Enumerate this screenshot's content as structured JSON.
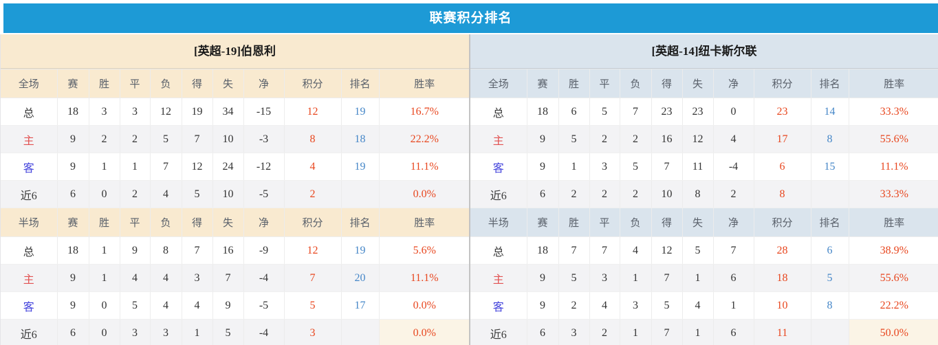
{
  "banner": {
    "title": "联赛积分排名"
  },
  "colors": {
    "banner_bg": "#1d9ad6",
    "cream": "#f9ead0",
    "light_blue": "#dae4ed",
    "alt_row": "#f3f3f5",
    "value_red": "#e8461e",
    "rank_blue": "#4687c8",
    "home_red": "#e25151",
    "away_blue": "#4343dc",
    "text": "#333333",
    "header_text": "#59606a",
    "highlight_cream": "#fbf4e6"
  },
  "tables": [
    {
      "title": "[英超-19]伯恩利",
      "sections": [
        {
          "header": [
            "全场",
            "赛",
            "胜",
            "平",
            "负",
            "得",
            "失",
            "净",
            "积分",
            "排名",
            "胜率"
          ],
          "rows": [
            {
              "label": "总",
              "label_type": "total",
              "values": [
                "18",
                "3",
                "3",
                "12",
                "19",
                "34",
                "-15"
              ],
              "points": "12",
              "rank": "19",
              "rate": "16.7%"
            },
            {
              "label": "主",
              "label_type": "home",
              "values": [
                "9",
                "2",
                "2",
                "5",
                "7",
                "10",
                "-3"
              ],
              "points": "8",
              "rank": "18",
              "rate": "22.2%"
            },
            {
              "label": "客",
              "label_type": "away",
              "values": [
                "9",
                "1",
                "1",
                "7",
                "12",
                "24",
                "-12"
              ],
              "points": "4",
              "rank": "19",
              "rate": "11.1%"
            },
            {
              "label": "近6",
              "label_type": "recent",
              "values": [
                "6",
                "0",
                "2",
                "4",
                "5",
                "10",
                "-5"
              ],
              "points": "2",
              "rank": "",
              "rate": "0.0%"
            }
          ]
        },
        {
          "header": [
            "半场",
            "赛",
            "胜",
            "平",
            "负",
            "得",
            "失",
            "净",
            "积分",
            "排名",
            "胜率"
          ],
          "rows": [
            {
              "label": "总",
              "label_type": "total",
              "values": [
                "18",
                "1",
                "9",
                "8",
                "7",
                "16",
                "-9"
              ],
              "points": "12",
              "rank": "19",
              "rate": "5.6%"
            },
            {
              "label": "主",
              "label_type": "home",
              "values": [
                "9",
                "1",
                "4",
                "4",
                "3",
                "7",
                "-4"
              ],
              "points": "7",
              "rank": "20",
              "rate": "11.1%"
            },
            {
              "label": "客",
              "label_type": "away",
              "values": [
                "9",
                "0",
                "5",
                "4",
                "4",
                "9",
                "-5"
              ],
              "points": "5",
              "rank": "17",
              "rate": "0.0%"
            },
            {
              "label": "近6",
              "label_type": "recent",
              "values": [
                "6",
                "0",
                "3",
                "3",
                "1",
                "5",
                "-4"
              ],
              "points": "3",
              "rank": "",
              "rate": "0.0%"
            }
          ]
        }
      ]
    },
    {
      "title": "[英超-14]纽卡斯尔联",
      "sections": [
        {
          "header": [
            "全场",
            "赛",
            "胜",
            "平",
            "负",
            "得",
            "失",
            "净",
            "积分",
            "排名",
            "胜率"
          ],
          "rows": [
            {
              "label": "总",
              "label_type": "total",
              "values": [
                "18",
                "6",
                "5",
                "7",
                "23",
                "23",
                "0"
              ],
              "points": "23",
              "rank": "14",
              "rate": "33.3%"
            },
            {
              "label": "主",
              "label_type": "home",
              "values": [
                "9",
                "5",
                "2",
                "2",
                "16",
                "12",
                "4"
              ],
              "points": "17",
              "rank": "8",
              "rate": "55.6%"
            },
            {
              "label": "客",
              "label_type": "away",
              "values": [
                "9",
                "1",
                "3",
                "5",
                "7",
                "11",
                "-4"
              ],
              "points": "6",
              "rank": "15",
              "rate": "11.1%"
            },
            {
              "label": "近6",
              "label_type": "recent",
              "values": [
                "6",
                "2",
                "2",
                "2",
                "10",
                "8",
                "2"
              ],
              "points": "8",
              "rank": "",
              "rate": "33.3%"
            }
          ]
        },
        {
          "header": [
            "半场",
            "赛",
            "胜",
            "平",
            "负",
            "得",
            "失",
            "净",
            "积分",
            "排名",
            "胜率"
          ],
          "rows": [
            {
              "label": "总",
              "label_type": "total",
              "values": [
                "18",
                "7",
                "7",
                "4",
                "12",
                "5",
                "7"
              ],
              "points": "28",
              "rank": "6",
              "rate": "38.9%"
            },
            {
              "label": "主",
              "label_type": "home",
              "values": [
                "9",
                "5",
                "3",
                "1",
                "7",
                "1",
                "6"
              ],
              "points": "18",
              "rank": "5",
              "rate": "55.6%"
            },
            {
              "label": "客",
              "label_type": "away",
              "values": [
                "9",
                "2",
                "4",
                "3",
                "5",
                "4",
                "1"
              ],
              "points": "10",
              "rank": "8",
              "rate": "22.2%"
            },
            {
              "label": "近6",
              "label_type": "recent",
              "values": [
                "6",
                "3",
                "2",
                "1",
                "7",
                "1",
                "6"
              ],
              "points": "11",
              "rank": "",
              "rate": "50.0%"
            }
          ]
        }
      ]
    }
  ]
}
